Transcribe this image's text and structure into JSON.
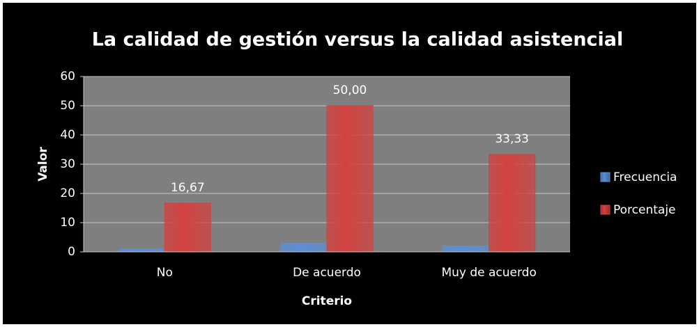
{
  "chart_data": {
    "type": "bar",
    "title": "La calidad de gestión versus la calidad asistencial",
    "x_label": "Criterio",
    "y_label": "Valor",
    "categories": [
      "No",
      "De acuerdo",
      "Muy de acuerdo"
    ],
    "series": [
      {
        "name": "Frecuencia",
        "color": "#5b8fd6",
        "values": [
          1,
          3,
          2
        ]
      },
      {
        "name": "Porcentaje",
        "color": "#d2423f",
        "values": [
          16.67,
          50,
          33.33
        ],
        "value_labels": [
          "16,67",
          "50,00",
          "33,33"
        ]
      }
    ],
    "ylim": [
      0,
      60
    ],
    "yticks": [
      0,
      10,
      20,
      30,
      40,
      50,
      60
    ],
    "grid": true,
    "legend": "right"
  }
}
